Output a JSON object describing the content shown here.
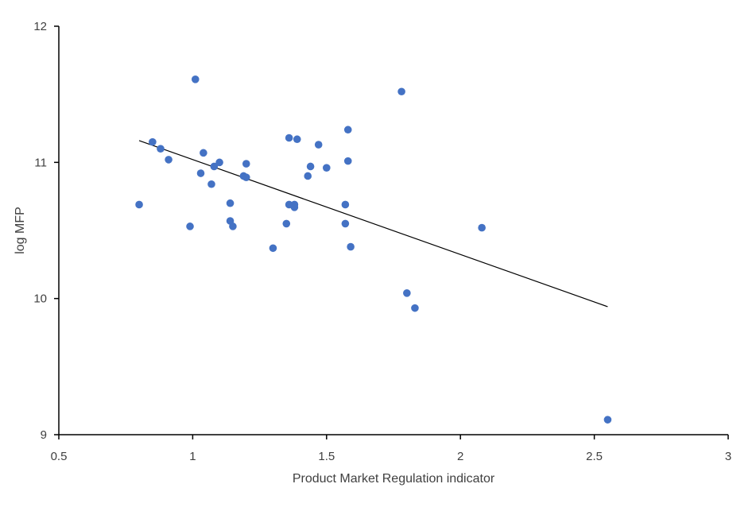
{
  "chart_data": {
    "type": "scatter",
    "title": "",
    "xlabel": "Product Market Regulation indicator",
    "ylabel": "log MFP",
    "xlim": [
      0.5,
      3
    ],
    "ylim": [
      9,
      12
    ],
    "xticks": [
      0.5,
      1,
      1.5,
      2,
      2.5,
      3
    ],
    "yticks": [
      9,
      10,
      11,
      12
    ],
    "xtick_labels": [
      "0.5",
      "1",
      "1.5",
      "2",
      "2.5",
      "3"
    ],
    "ytick_labels": [
      "9",
      "10",
      "11",
      "12"
    ],
    "grid": false,
    "legend": "none",
    "marker_color": "#4472C4",
    "trendline": {
      "type": "linear",
      "x": [
        0.8,
        2.55
      ],
      "y": [
        11.16,
        9.94
      ],
      "color": "#000000"
    },
    "points": [
      {
        "x": 1.01,
        "y": 11.61
      },
      {
        "x": 1.78,
        "y": 11.52
      },
      {
        "x": 1.58,
        "y": 11.24
      },
      {
        "x": 0.85,
        "y": 11.15
      },
      {
        "x": 0.88,
        "y": 11.1
      },
      {
        "x": 1.04,
        "y": 11.07
      },
      {
        "x": 0.91,
        "y": 11.02
      },
      {
        "x": 1.1,
        "y": 11.0
      },
      {
        "x": 1.08,
        "y": 10.97
      },
      {
        "x": 1.2,
        "y": 10.99
      },
      {
        "x": 1.36,
        "y": 11.18
      },
      {
        "x": 1.39,
        "y": 11.17
      },
      {
        "x": 1.47,
        "y": 11.13
      },
      {
        "x": 1.58,
        "y": 11.01
      },
      {
        "x": 1.03,
        "y": 10.92
      },
      {
        "x": 1.07,
        "y": 10.84
      },
      {
        "x": 1.19,
        "y": 10.9
      },
      {
        "x": 1.2,
        "y": 10.89
      },
      {
        "x": 1.44,
        "y": 10.97
      },
      {
        "x": 1.5,
        "y": 10.96
      },
      {
        "x": 1.43,
        "y": 10.9
      },
      {
        "x": 0.8,
        "y": 10.69
      },
      {
        "x": 1.14,
        "y": 10.7
      },
      {
        "x": 1.36,
        "y": 10.69
      },
      {
        "x": 1.38,
        "y": 10.69
      },
      {
        "x": 1.38,
        "y": 10.67
      },
      {
        "x": 1.57,
        "y": 10.69
      },
      {
        "x": 1.14,
        "y": 10.57
      },
      {
        "x": 0.99,
        "y": 10.53
      },
      {
        "x": 1.15,
        "y": 10.53
      },
      {
        "x": 1.35,
        "y": 10.55
      },
      {
        "x": 1.57,
        "y": 10.55
      },
      {
        "x": 2.08,
        "y": 10.52
      },
      {
        "x": 1.3,
        "y": 10.37
      },
      {
        "x": 1.59,
        "y": 10.38
      },
      {
        "x": 1.8,
        "y": 10.04
      },
      {
        "x": 1.83,
        "y": 9.93
      },
      {
        "x": 2.55,
        "y": 9.11
      }
    ]
  }
}
